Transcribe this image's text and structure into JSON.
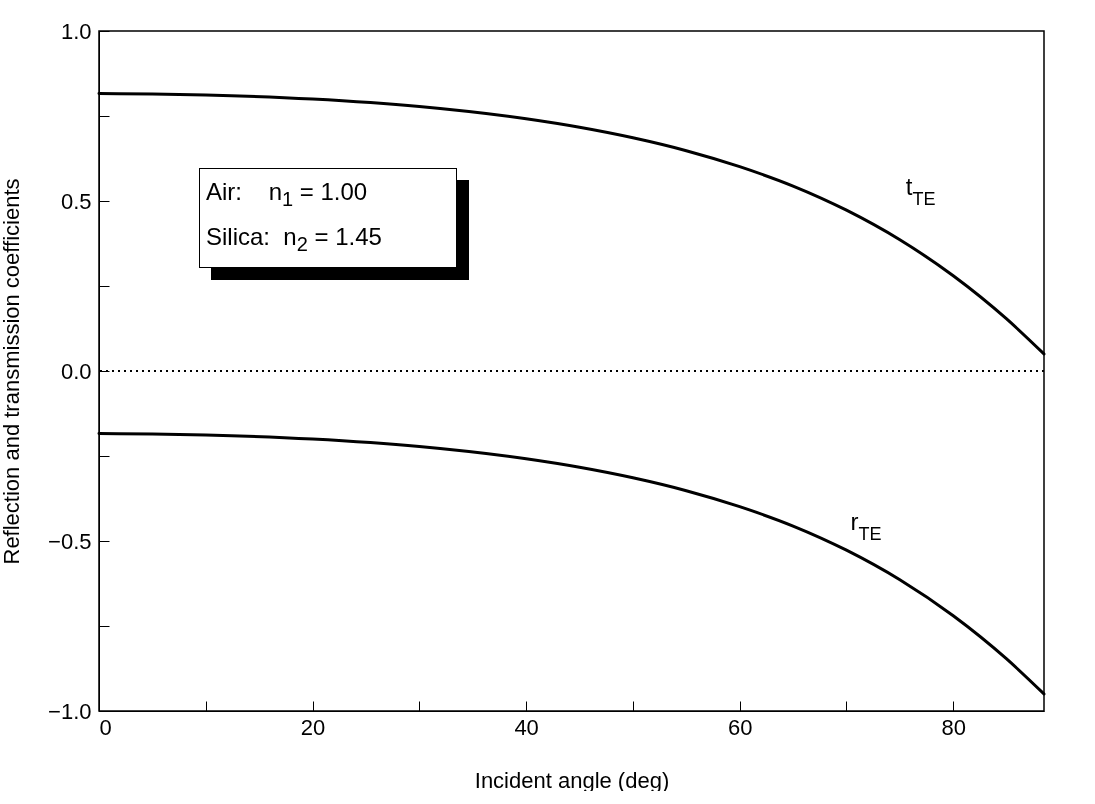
{
  "chart_data": {
    "type": "line",
    "xlabel": "Incident angle (deg)",
    "ylabel": "Reflection and transmission coefficients",
    "x": [
      0,
      5,
      10,
      20,
      30,
      40,
      45,
      50,
      55,
      60,
      65,
      70,
      75,
      80,
      85,
      88.5
    ],
    "series": [
      {
        "name": "t$_{TE}$",
        "color": "#000000",
        "values": [
          0.816,
          0.815,
          0.812,
          0.8,
          0.778,
          0.742,
          0.717,
          0.686,
          0.648,
          0.601,
          0.544,
          0.473,
          0.386,
          0.28,
          0.153,
          0.05
        ]
      },
      {
        "name": "r$_{TE}$",
        "color": "#000000",
        "values": [
          -0.184,
          -0.185,
          -0.188,
          -0.2,
          -0.222,
          -0.258,
          -0.283,
          -0.314,
          -0.352,
          -0.399,
          -0.456,
          -0.527,
          -0.614,
          -0.72,
          -0.847,
          -0.95
        ]
      }
    ],
    "xlim": [
      0,
      88.5
    ],
    "ylim": [
      -1,
      1
    ],
    "xticks": [
      0,
      {
        "value": 10,
        "label": null
      },
      20,
      {
        "value": 30,
        "label": null
      },
      40,
      {
        "value": 50,
        "label": null
      },
      60,
      {
        "value": 70,
        "label": null
      },
      80
    ],
    "yticks": [
      {
        "value": -1,
        "label": "−1.0"
      },
      {
        "value": -0.75,
        "label": null
      },
      {
        "value": -0.5,
        "label": "−0.5"
      },
      {
        "value": -0.25,
        "label": null
      },
      {
        "value": 0,
        "label": "0.0"
      },
      {
        "value": 0.25,
        "label": null
      },
      {
        "value": 0.5,
        "label": "0.5"
      },
      {
        "value": 0.75,
        "label": null
      },
      {
        "value": 1,
        "label": "1.0"
      }
    ],
    "ref_lines": [
      {
        "axis": "y",
        "value": 0,
        "line_style": "dotted",
        "color": "#000000"
      }
    ],
    "annotations": [
      "Air:    n$_{1}$ = 1.00",
      "Silica:  n$_{2}$ = 1.45"
    ],
    "grid": false,
    "marker": "none",
    "line_style": "solid"
  }
}
